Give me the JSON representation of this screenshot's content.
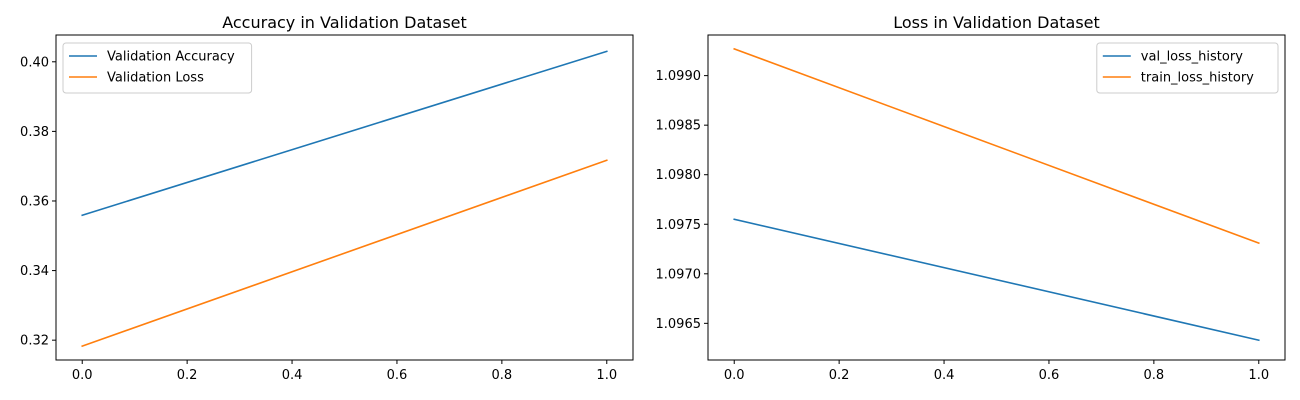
{
  "chart_data": [
    {
      "type": "line",
      "title": "Accuracy in Validation Dataset",
      "xlabel": "",
      "ylabel": "",
      "xlim": [
        -0.05,
        1.05
      ],
      "ylim": [
        0.3143,
        0.4077
      ],
      "x_ticks": [
        0.0,
        0.2,
        0.4,
        0.6,
        0.8,
        1.0
      ],
      "x_tick_labels": [
        "0.0",
        "0.2",
        "0.4",
        "0.6",
        "0.8",
        "1.0"
      ],
      "y_ticks": [
        0.32,
        0.34,
        0.36,
        0.38,
        0.4
      ],
      "y_tick_labels": [
        "0.32",
        "0.34",
        "0.36",
        "0.38",
        "0.40"
      ],
      "grid": false,
      "legend_position": "top-left",
      "series": [
        {
          "name": "Validation Accuracy",
          "color": "#1f77b4",
          "x": [
            0,
            1
          ],
          "y": [
            0.3559,
            0.403
          ]
        },
        {
          "name": "Validation Loss",
          "color": "#ff7f0e",
          "x": [
            0,
            1
          ],
          "y": [
            0.3183,
            0.3717
          ]
        }
      ]
    },
    {
      "type": "line",
      "title": "Loss in Validation Dataset",
      "xlabel": "",
      "ylabel": "",
      "xlim": [
        -0.05,
        1.05
      ],
      "ylim": [
        1.09613,
        1.09941
      ],
      "x_ticks": [
        0.0,
        0.2,
        0.4,
        0.6,
        0.8,
        1.0
      ],
      "x_tick_labels": [
        "0.0",
        "0.2",
        "0.4",
        "0.6",
        "0.8",
        "1.0"
      ],
      "y_ticks": [
        1.0965,
        1.097,
        1.0975,
        1.098,
        1.0985,
        1.099
      ],
      "y_tick_labels": [
        "1.0965",
        "1.0970",
        "1.0975",
        "1.0980",
        "1.0985",
        "1.0990"
      ],
      "grid": false,
      "legend_position": "top-right",
      "series": [
        {
          "name": "val_loss_history",
          "color": "#1f77b4",
          "x": [
            0,
            1
          ],
          "y": [
            1.09755,
            1.09633
          ]
        },
        {
          "name": "train_loss_history",
          "color": "#ff7f0e",
          "x": [
            0,
            1
          ],
          "y": [
            1.09927,
            1.09731
          ]
        }
      ]
    }
  ]
}
